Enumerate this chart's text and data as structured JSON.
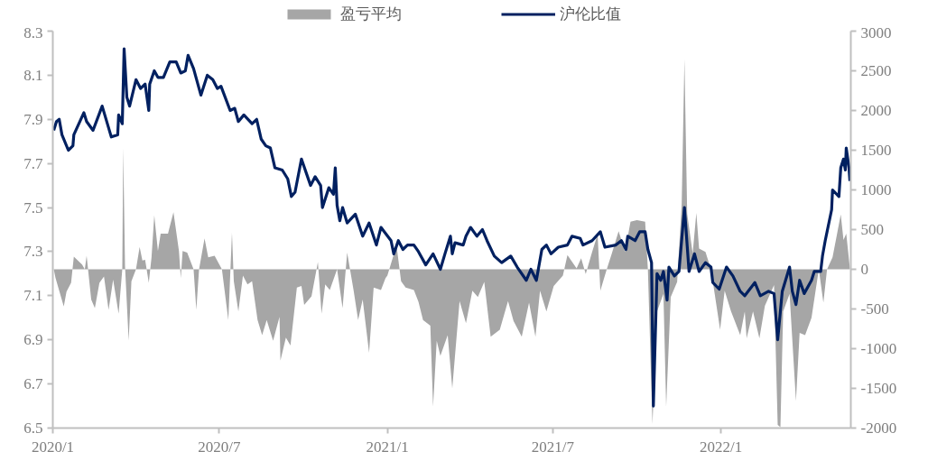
{
  "chart_data": {
    "type": "line",
    "xlim": [
      "2020-01-01",
      "2022-05-23"
    ],
    "xticks": [
      {
        "value": "2020-01-01",
        "label": "2020/1"
      },
      {
        "value": "2020-07-01",
        "label": "2020/7"
      },
      {
        "value": "2021-01-01",
        "label": "2021/1"
      },
      {
        "value": "2021-07-01",
        "label": "2021/7"
      },
      {
        "value": "2022-01-01",
        "label": "2022/1"
      }
    ],
    "ylim": [
      6.5,
      8.3
    ],
    "yticks": [
      6.5,
      6.7,
      6.9,
      7.1,
      7.3,
      7.5,
      7.7,
      7.9,
      8.1,
      8.3
    ],
    "y2lim": [
      -2000,
      3000
    ],
    "y2ticks": [
      -2000,
      -1500,
      -1000,
      -500,
      0,
      500,
      1000,
      1500,
      2000,
      2500,
      3000
    ],
    "legend": "top",
    "series": [
      {
        "name": "盈亏平均",
        "type": "area",
        "axis": "y2",
        "color": "#a6a6a6",
        "x": [
          "2020-01-02",
          "2020-01-04",
          "2020-01-13",
          "2020-01-16",
          "2020-01-21",
          "2020-01-24",
          "2020-02-02",
          "2020-02-05",
          "2020-02-07",
          "2020-02-12",
          "2020-02-16",
          "2020-02-21",
          "2020-02-26",
          "2020-03-02",
          "2020-03-07",
          "2020-03-13",
          "2020-03-17",
          "2020-03-18",
          "2020-03-20",
          "2020-03-24",
          "2020-03-27",
          "2020-04-01",
          "2020-04-05",
          "2020-04-08",
          "2020-04-11",
          "2020-04-15",
          "2020-04-18",
          "2020-04-21",
          "2020-04-25",
          "2020-04-28",
          "2020-05-06",
          "2020-05-12",
          "2020-05-18",
          "2020-05-20",
          "2020-05-22",
          "2020-05-27",
          "2020-06-03",
          "2020-06-06",
          "2020-06-09",
          "2020-06-15",
          "2020-06-19",
          "2020-06-26",
          "2020-07-04",
          "2020-07-11",
          "2020-07-15",
          "2020-07-17",
          "2020-07-22",
          "2020-07-27",
          "2020-08-01",
          "2020-08-06",
          "2020-08-12",
          "2020-08-17",
          "2020-08-22",
          "2020-08-29",
          "2020-09-05",
          "2020-09-06",
          "2020-09-12",
          "2020-09-17",
          "2020-09-24",
          "2020-09-29",
          "2020-10-02",
          "2020-10-10",
          "2020-10-17",
          "2020-10-21",
          "2020-10-25",
          "2020-10-30",
          "2020-11-07",
          "2020-11-13",
          "2020-11-18",
          "2020-11-25",
          "2020-11-30",
          "2020-12-05",
          "2020-12-12",
          "2020-12-17",
          "2020-12-25",
          "2020-12-30",
          "2021-01-01",
          "2021-01-11",
          "2021-01-16",
          "2021-01-21",
          "2021-01-30",
          "2021-02-04",
          "2021-02-09",
          "2021-02-17",
          "2021-02-20",
          "2021-02-24",
          "2021-02-28",
          "2021-03-08",
          "2021-03-13",
          "2021-03-21",
          "2021-03-28",
          "2021-04-04",
          "2021-04-10",
          "2021-04-17",
          "2021-04-24",
          "2021-05-04",
          "2021-05-13",
          "2021-05-19",
          "2021-05-28",
          "2021-06-05",
          "2021-06-12",
          "2021-06-17",
          "2021-06-24",
          "2021-07-02",
          "2021-07-12",
          "2021-07-17",
          "2021-07-27",
          "2021-08-01",
          "2021-08-06",
          "2021-08-13",
          "2021-08-19",
          "2021-08-22",
          "2021-08-29",
          "2021-09-03",
          "2021-09-11",
          "2021-09-18",
          "2021-09-24",
          "2021-10-01",
          "2021-10-10",
          "2021-10-13",
          "2021-10-18",
          "2021-10-23",
          "2021-10-30",
          "2021-11-02",
          "2021-11-07",
          "2021-11-14",
          "2021-11-19",
          "2021-11-22",
          "2021-11-25",
          "2021-12-01",
          "2021-12-05",
          "2021-12-08",
          "2021-12-15",
          "2021-12-21",
          "2021-12-28",
          "2021-12-31",
          "2022-01-05",
          "2022-01-12",
          "2022-01-22",
          "2022-01-27",
          "2022-01-29",
          "2022-02-05",
          "2022-02-12",
          "2022-02-18",
          "2022-02-28",
          "2022-03-04",
          "2022-03-07",
          "2022-03-10",
          "2022-03-17",
          "2022-03-24",
          "2022-03-28",
          "2022-04-03",
          "2022-04-10",
          "2022-04-18",
          "2022-04-23",
          "2022-04-27",
          "2022-05-03",
          "2022-05-08",
          "2022-05-12",
          "2022-05-15",
          "2022-05-18",
          "2022-05-22"
        ],
        "values": [
          0,
          -110,
          -470,
          -280,
          -170,
          160,
          60,
          0,
          170,
          -380,
          -490,
          -170,
          -90,
          -510,
          -130,
          -560,
          0,
          1530,
          40,
          -900,
          -150,
          0,
          280,
          110,
          120,
          -170,
          150,
          680,
          230,
          450,
          450,
          720,
          230,
          -110,
          230,
          210,
          0,
          -510,
          0,
          390,
          150,
          170,
          0,
          -640,
          460,
          -150,
          -530,
          -80,
          -190,
          -150,
          -640,
          -830,
          -640,
          -900,
          -600,
          -1150,
          -860,
          -960,
          -230,
          -210,
          -450,
          -340,
          90,
          -560,
          -190,
          -260,
          0,
          -490,
          210,
          -260,
          -640,
          -380,
          -1050,
          -230,
          -260,
          -110,
          -80,
          300,
          -150,
          -230,
          -260,
          -410,
          -640,
          -710,
          -1730,
          -900,
          -1090,
          -830,
          -1500,
          -400,
          -680,
          -270,
          -350,
          -160,
          -850,
          -760,
          -400,
          -650,
          -850,
          -420,
          -850,
          -270,
          -530,
          -210,
          -80,
          180,
          10,
          140,
          -60,
          220,
          440,
          -270,
          0,
          180,
          480,
          220,
          600,
          620,
          600,
          0,
          -1950,
          -530,
          -310,
          -1730,
          -350,
          -160,
          820,
          2650,
          700,
          200,
          710,
          260,
          220,
          0,
          -530,
          -760,
          -270,
          -530,
          -830,
          -530,
          -870,
          -530,
          -870,
          -460,
          -200,
          -1960,
          -1990,
          -530,
          -310,
          -1660,
          -800,
          -830,
          -610,
          0,
          -420,
          0,
          150,
          450,
          690,
          370,
          450,
          10
        ]
      },
      {
        "name": "沪伦比值",
        "axis": "y",
        "color": "#002060",
        "x": [
          "2020-01-02",
          "2020-01-05",
          "2020-01-08",
          "2020-01-11",
          "2020-01-18",
          "2020-01-23",
          "2020-01-24",
          "2020-02-04",
          "2020-02-07",
          "2020-02-14",
          "2020-02-24",
          "2020-03-05",
          "2020-03-12",
          "2020-03-13",
          "2020-03-17",
          "2020-03-19",
          "2020-03-22",
          "2020-03-25",
          "2020-04-01",
          "2020-04-06",
          "2020-04-11",
          "2020-04-15",
          "2020-04-16",
          "2020-04-21",
          "2020-04-25",
          "2020-05-01",
          "2020-05-08",
          "2020-05-15",
          "2020-05-20",
          "2020-05-25",
          "2020-05-28",
          "2020-06-03",
          "2020-06-11",
          "2020-06-18",
          "2020-06-24",
          "2020-06-29",
          "2020-07-03",
          "2020-07-13",
          "2020-07-18",
          "2020-07-22",
          "2020-07-28",
          "2020-08-06",
          "2020-08-11",
          "2020-08-16",
          "2020-08-21",
          "2020-08-26",
          "2020-08-31",
          "2020-09-08",
          "2020-09-14",
          "2020-09-18",
          "2020-09-22",
          "2020-09-29",
          "2020-10-09",
          "2020-10-14",
          "2020-10-20",
          "2020-10-22",
          "2020-10-29",
          "2020-11-03",
          "2020-11-05",
          "2020-11-07",
          "2020-11-10",
          "2020-11-13",
          "2020-11-18",
          "2020-11-27",
          "2020-12-05",
          "2020-12-12",
          "2020-12-20",
          "2020-12-25",
          "2021-01-05",
          "2021-01-08",
          "2021-01-13",
          "2021-01-18",
          "2021-01-23",
          "2021-01-30",
          "2021-02-04",
          "2021-02-12",
          "2021-02-20",
          "2021-02-28",
          "2021-03-05",
          "2021-03-11",
          "2021-03-13",
          "2021-03-16",
          "2021-03-25",
          "2021-03-28",
          "2021-04-02",
          "2021-04-09",
          "2021-04-15",
          "2021-04-20",
          "2021-04-28",
          "2021-05-06",
          "2021-05-16",
          "2021-05-23",
          "2021-06-02",
          "2021-06-07",
          "2021-06-13",
          "2021-06-19",
          "2021-06-24",
          "2021-06-29",
          "2021-07-07",
          "2021-07-17",
          "2021-07-22",
          "2021-07-31",
          "2021-08-03",
          "2021-08-13",
          "2021-08-22",
          "2021-08-27",
          "2021-09-08",
          "2021-09-14",
          "2021-09-19",
          "2021-09-21",
          "2021-09-29",
          "2021-10-04",
          "2021-10-10",
          "2021-10-13",
          "2021-10-17",
          "2021-10-19",
          "2021-10-23",
          "2021-10-27",
          "2021-10-30",
          "2021-11-03",
          "2021-11-05",
          "2021-11-11",
          "2021-11-16",
          "2021-11-22",
          "2021-11-27",
          "2021-12-03",
          "2021-12-08",
          "2021-12-15",
          "2021-12-21",
          "2021-12-23",
          "2021-12-30",
          "2022-01-07",
          "2022-01-14",
          "2022-01-22",
          "2022-01-27",
          "2022-02-07",
          "2022-02-13",
          "2022-02-22",
          "2022-02-28",
          "2022-03-04",
          "2022-03-09",
          "2022-03-17",
          "2022-03-20",
          "2022-03-24",
          "2022-03-28",
          "2022-04-02",
          "2022-04-10",
          "2022-04-13",
          "2022-04-20",
          "2022-04-22",
          "2022-04-25",
          "2022-05-02",
          "2022-05-03",
          "2022-05-10",
          "2022-05-12",
          "2022-05-15",
          "2022-05-17",
          "2022-05-18",
          "2022-05-21",
          "2022-05-22"
        ],
        "values": [
          7.85,
          7.89,
          7.9,
          7.83,
          7.76,
          7.78,
          7.83,
          7.93,
          7.89,
          7.85,
          7.96,
          7.82,
          7.83,
          7.92,
          7.88,
          8.22,
          8.0,
          7.96,
          8.08,
          8.04,
          8.06,
          7.94,
          8.06,
          8.12,
          8.09,
          8.09,
          8.16,
          8.16,
          8.11,
          8.12,
          8.19,
          8.13,
          8.01,
          8.1,
          8.08,
          8.04,
          8.05,
          7.94,
          7.95,
          7.89,
          7.92,
          7.88,
          7.9,
          7.81,
          7.78,
          7.77,
          7.68,
          7.67,
          7.63,
          7.55,
          7.57,
          7.72,
          7.6,
          7.64,
          7.6,
          7.5,
          7.59,
          7.56,
          7.68,
          7.51,
          7.44,
          7.5,
          7.43,
          7.47,
          7.37,
          7.43,
          7.33,
          7.41,
          7.35,
          7.29,
          7.35,
          7.31,
          7.33,
          7.33,
          7.3,
          7.24,
          7.29,
          7.22,
          7.29,
          7.37,
          7.29,
          7.34,
          7.33,
          7.37,
          7.41,
          7.37,
          7.4,
          7.35,
          7.28,
          7.25,
          7.28,
          7.23,
          7.17,
          7.22,
          7.17,
          7.31,
          7.33,
          7.29,
          7.32,
          7.33,
          7.37,
          7.36,
          7.33,
          7.35,
          7.39,
          7.32,
          7.33,
          7.35,
          7.31,
          7.37,
          7.35,
          7.39,
          7.39,
          7.31,
          7.25,
          6.6,
          7.2,
          7.17,
          7.21,
          7.08,
          7.23,
          7.19,
          7.21,
          7.5,
          7.21,
          7.29,
          7.21,
          7.25,
          7.23,
          7.16,
          7.13,
          7.23,
          7.19,
          7.12,
          7.1,
          7.16,
          7.1,
          7.12,
          7.11,
          6.9,
          7.12,
          7.23,
          7.12,
          7.06,
          7.17,
          7.11,
          7.17,
          7.21,
          7.21,
          7.28,
          7.35,
          7.49,
          7.58,
          7.55,
          7.68,
          7.72,
          7.67,
          7.77,
          7.68,
          7.62
        ]
      }
    ]
  }
}
